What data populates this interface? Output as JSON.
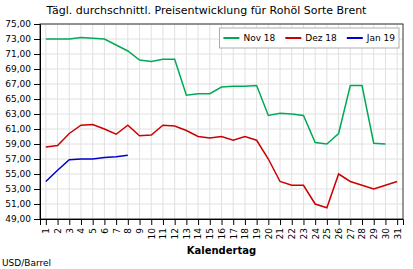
{
  "chart_data": {
    "type": "line",
    "title": "Tägl. durchschnittl. Preisentwicklung für Rohöl Sorte Brent",
    "xlabel": "Kalendertag",
    "ylabel": "USD/Barrel",
    "x": [
      1,
      2,
      3,
      4,
      5,
      6,
      7,
      8,
      9,
      10,
      11,
      12,
      13,
      14,
      15,
      16,
      17,
      18,
      19,
      20,
      21,
      22,
      23,
      24,
      25,
      26,
      27,
      28,
      29,
      30,
      31
    ],
    "series": [
      {
        "name": "Nov 18",
        "color": "#00AA55",
        "values": [
          73.0,
          73.0,
          73.0,
          73.2,
          73.1,
          73.0,
          72.2,
          71.4,
          70.2,
          70.0,
          70.3,
          70.3,
          65.5,
          65.7,
          65.7,
          66.6,
          66.7,
          66.7,
          66.8,
          62.8,
          63.1,
          63.0,
          62.8,
          59.2,
          59.0,
          60.4,
          66.8,
          66.8,
          59.1,
          59.0,
          null
        ]
      },
      {
        "name": "Dez 18",
        "color": "#CC0000",
        "values": [
          58.6,
          58.8,
          60.4,
          61.5,
          61.6,
          61.0,
          60.3,
          61.5,
          60.1,
          60.2,
          61.5,
          61.4,
          60.8,
          60.0,
          59.8,
          60.0,
          59.5,
          60.0,
          59.5,
          57.0,
          54.0,
          53.5,
          53.5,
          51.0,
          50.5,
          55.0,
          54.0,
          53.5,
          53.0,
          53.5,
          54.0
        ]
      },
      {
        "name": "Jan 19",
        "color": "#0000CC",
        "values": [
          54.0,
          55.5,
          56.9,
          57.0,
          57.0,
          57.2,
          57.3,
          57.5,
          null,
          null,
          null,
          null,
          null,
          null,
          null,
          null,
          null,
          null,
          null,
          null,
          null,
          null,
          null,
          null,
          null,
          null,
          null,
          null,
          null,
          null,
          null
        ]
      }
    ],
    "xlim": [
      0.5,
      31.5
    ],
    "xticks": [
      1,
      2,
      3,
      4,
      5,
      6,
      7,
      8,
      9,
      10,
      11,
      12,
      13,
      14,
      15,
      16,
      17,
      18,
      19,
      20,
      21,
      22,
      23,
      24,
      25,
      26,
      27,
      28,
      29,
      30,
      31
    ],
    "ylim": [
      49.0,
      75.0
    ],
    "yticks": [
      {
        "value": 49.0,
        "label": "49,00"
      },
      {
        "value": 51.0,
        "label": "51,00"
      },
      {
        "value": 53.0,
        "label": "53,00"
      },
      {
        "value": 55.0,
        "label": "55,00"
      },
      {
        "value": 57.0,
        "label": "57,00"
      },
      {
        "value": 59.0,
        "label": "59,00"
      },
      {
        "value": 61.0,
        "label": "61,00"
      },
      {
        "value": 63.0,
        "label": "63,00"
      },
      {
        "value": 65.0,
        "label": "65,00"
      },
      {
        "value": 67.0,
        "label": "67,00"
      },
      {
        "value": 69.0,
        "label": "69,00"
      },
      {
        "value": 71.0,
        "label": "71,00"
      },
      {
        "value": 73.0,
        "label": "73,00"
      },
      {
        "value": 75.0,
        "label": "75,00"
      }
    ],
    "grid": true,
    "legend": "upper right"
  }
}
